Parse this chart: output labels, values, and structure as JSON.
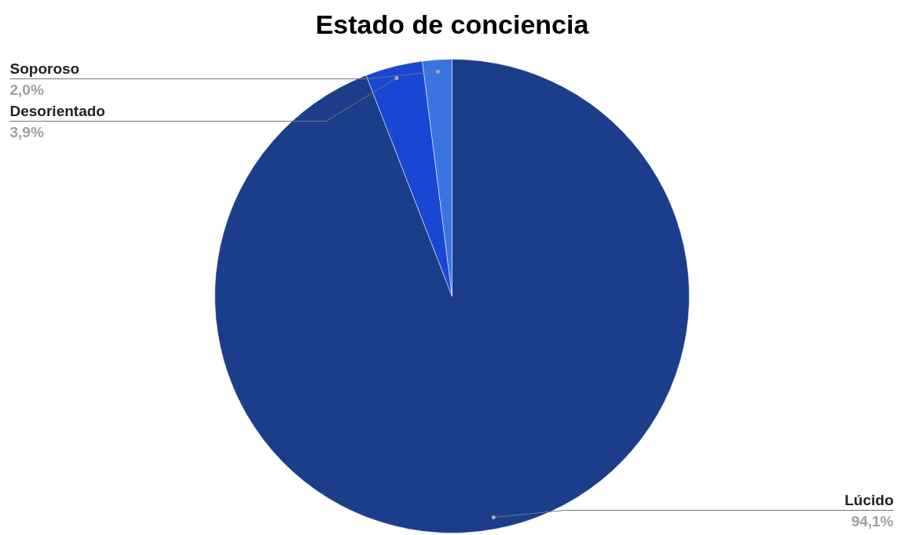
{
  "chart_data": {
    "type": "pie",
    "title": "Estado de conciencia",
    "categories": [
      "Lúcido",
      "Desorientado",
      "Soporoso"
    ],
    "values": [
      94.1,
      3.9,
      2.0
    ],
    "colors": [
      "#1b3d8a",
      "#1a46d4",
      "#3a74e2"
    ],
    "value_labels": [
      "94,1%",
      "3,9%",
      "2,0%"
    ]
  }
}
